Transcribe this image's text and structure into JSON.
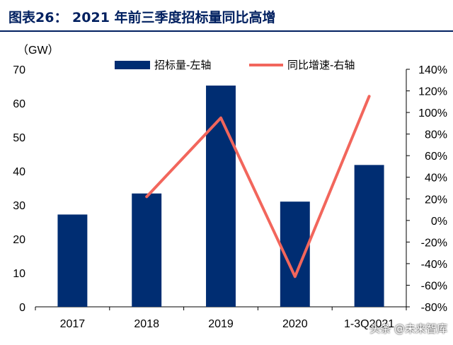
{
  "figure_title": "图表26：  2021 年前三季度招标量同比高增",
  "watermark": "头条 @未来智库",
  "chart_data": {
    "type": "bar",
    "title": "",
    "unit_label": "（GW）",
    "categories": [
      "2017",
      "2018",
      "2019",
      "2020",
      "1-3Q2021"
    ],
    "ylim_left": [
      0,
      70
    ],
    "yticks_left": [
      "0",
      "10",
      "20",
      "30",
      "40",
      "50",
      "60",
      "70"
    ],
    "ylim_right": [
      -80,
      140
    ],
    "yticks_right": [
      "-80%",
      "-60%",
      "-40%",
      "-20%",
      "0%",
      "20%",
      "40%",
      "60%",
      "80%",
      "100%",
      "120%",
      "140%"
    ],
    "legend_position": "top",
    "grid": false,
    "series": [
      {
        "name": "招标量-左轴",
        "type": "bar",
        "axis": "left",
        "color": "#002D72",
        "values": [
          27.2,
          33.4,
          65.2,
          31.0,
          41.8
        ]
      },
      {
        "name": "同比增速-右轴",
        "type": "line",
        "axis": "right",
        "color": "#F2665C",
        "values": [
          null,
          22,
          95,
          -52,
          115
        ]
      }
    ]
  }
}
